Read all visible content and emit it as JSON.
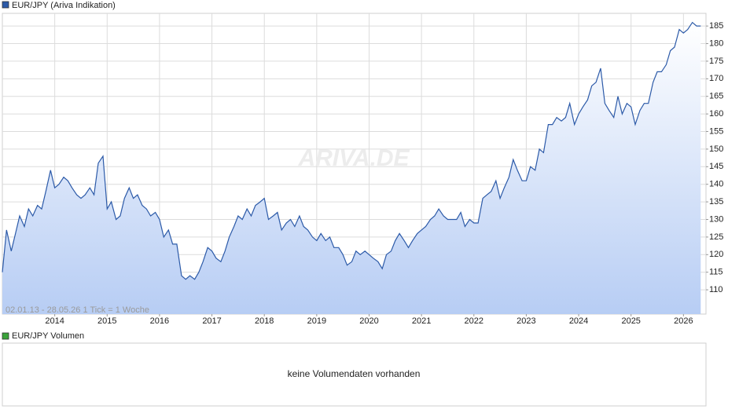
{
  "chart_data": {
    "type": "line",
    "series": [
      {
        "name": "EUR/JPY (Ariva Indikation)",
        "color": "#2c5aa8",
        "x": [
          2013.0,
          2013.08,
          2013.17,
          2013.25,
          2013.33,
          2013.42,
          2013.5,
          2013.58,
          2013.67,
          2013.75,
          2013.83,
          2013.92,
          2014.0,
          2014.08,
          2014.17,
          2014.25,
          2014.33,
          2014.42,
          2014.5,
          2014.58,
          2014.67,
          2014.75,
          2014.83,
          2014.92,
          2015.0,
          2015.08,
          2015.17,
          2015.25,
          2015.33,
          2015.42,
          2015.5,
          2015.58,
          2015.67,
          2015.75,
          2015.83,
          2015.92,
          2016.0,
          2016.08,
          2016.17,
          2016.25,
          2016.33,
          2016.42,
          2016.5,
          2016.58,
          2016.67,
          2016.75,
          2016.83,
          2016.92,
          2017.0,
          2017.08,
          2017.17,
          2017.25,
          2017.33,
          2017.42,
          2017.5,
          2017.58,
          2017.67,
          2017.75,
          2017.83,
          2017.92,
          2018.0,
          2018.08,
          2018.17,
          2018.25,
          2018.33,
          2018.42,
          2018.5,
          2018.58,
          2018.67,
          2018.75,
          2018.83,
          2018.92,
          2019.0,
          2019.08,
          2019.17,
          2019.25,
          2019.33,
          2019.42,
          2019.5,
          2019.58,
          2019.67,
          2019.75,
          2019.83,
          2019.92,
          2020.0,
          2020.08,
          2020.17,
          2020.25,
          2020.33,
          2020.42,
          2020.5,
          2020.58,
          2020.67,
          2020.75,
          2020.83,
          2020.92,
          2021.0,
          2021.08,
          2021.17,
          2021.25,
          2021.33,
          2021.42,
          2021.5,
          2021.58,
          2021.67,
          2021.75,
          2021.83,
          2021.92,
          2022.0,
          2022.08,
          2022.17,
          2022.25,
          2022.33,
          2022.42,
          2022.5,
          2022.58,
          2022.67,
          2022.75,
          2022.83,
          2022.92,
          2023.0,
          2023.08,
          2023.17,
          2023.25,
          2023.33,
          2023.42,
          2023.5,
          2023.58,
          2023.67,
          2023.75,
          2023.83,
          2023.92,
          2024.0,
          2024.08,
          2024.17,
          2024.25,
          2024.33,
          2024.42,
          2024.5,
          2024.58,
          2024.67,
          2024.75,
          2024.83,
          2024.92,
          2025.0,
          2025.08,
          2025.17,
          2025.25,
          2025.33,
          2025.42,
          2025.5,
          2025.58,
          2025.67,
          2025.75,
          2025.83,
          2025.92,
          2026.0,
          2026.08,
          2026.17,
          2026.25,
          2026.33
        ],
        "values": [
          115,
          127,
          121,
          126,
          131,
          128,
          133,
          131,
          134,
          133,
          138,
          144,
          139,
          140,
          142,
          141,
          139,
          137,
          136,
          137,
          139,
          137,
          146,
          148,
          133,
          135,
          130,
          131,
          136,
          139,
          136,
          137,
          134,
          133,
          131,
          132,
          130,
          125,
          127,
          123,
          123,
          114,
          113,
          114,
          113,
          115,
          118,
          122,
          121,
          119,
          118,
          121,
          125,
          128,
          131,
          130,
          133,
          131,
          134,
          135,
          136,
          130,
          131,
          132,
          127,
          129,
          130,
          128,
          131,
          128,
          127,
          125,
          124,
          126,
          124,
          125,
          122,
          122,
          120,
          117,
          118,
          121,
          120,
          121,
          120,
          119,
          118,
          116,
          120,
          121,
          124,
          126,
          124,
          122,
          124,
          126,
          127,
          128,
          130,
          131,
          133,
          131,
          130,
          130,
          130,
          132,
          128,
          130,
          129,
          129,
          136,
          137,
          138,
          141,
          136,
          139,
          142,
          147,
          144,
          141,
          141,
          145,
          144,
          150,
          149,
          157,
          157,
          159,
          158,
          159,
          163,
          157,
          160,
          162,
          164,
          168,
          169,
          173,
          163,
          161,
          159,
          165,
          160,
          163,
          162,
          157,
          161,
          163,
          163,
          169,
          172,
          172,
          174,
          178,
          179,
          184,
          183,
          184,
          186,
          185,
          185
        ]
      }
    ],
    "xlim": [
      2013.0,
      2026.43
    ],
    "xticks": [
      2014,
      2015,
      2016,
      2017,
      2018,
      2019,
      2020,
      2021,
      2022,
      2023,
      2024,
      2025,
      2026
    ],
    "ylim": [
      103.1,
      188.6
    ],
    "yticks": [
      110,
      115,
      120,
      125,
      130,
      135,
      140,
      145,
      150,
      155,
      160,
      165,
      170,
      175,
      180,
      185
    ],
    "grid": true,
    "watermark": "ARIVA.DE",
    "annotation": "02.01.13 - 28.05.26   1 Tick = 1 Woche"
  },
  "volume_panel": {
    "title": "EUR/JPY Volumen",
    "color": "#3aa33a",
    "message": "keine Volumendaten vorhanden"
  }
}
